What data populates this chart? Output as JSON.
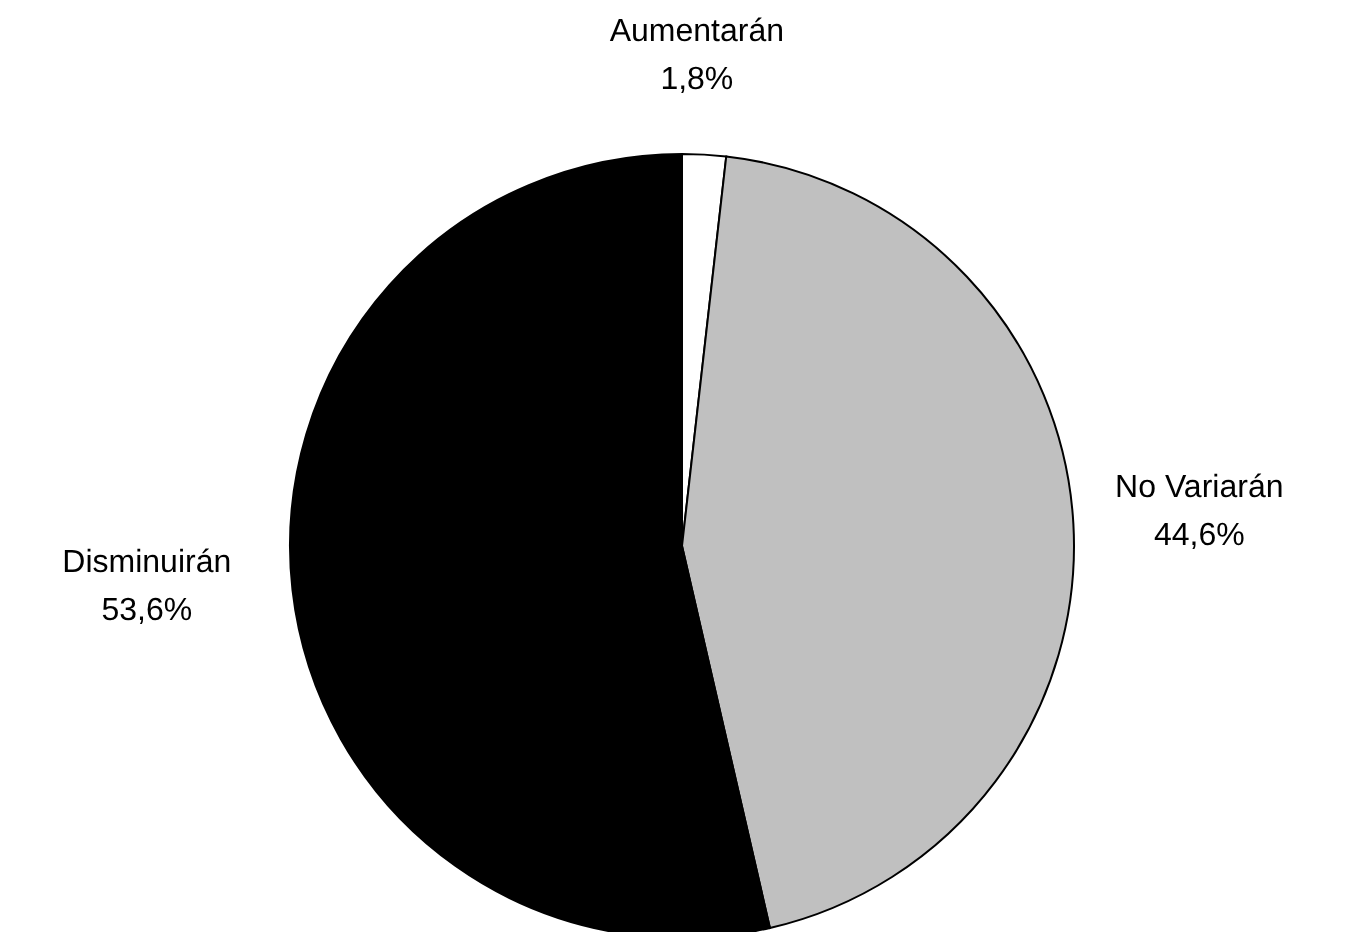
{
  "chart_data": {
    "type": "pie",
    "categories": [
      "Aumentarán",
      "No Variarán",
      "Disminuirán"
    ],
    "values": [
      1.8,
      44.6,
      53.6
    ],
    "value_labels": [
      "1,8%",
      "44,6%",
      "53,6%"
    ],
    "colors": [
      "#ffffff",
      "#c0c0c0",
      "#000000"
    ],
    "legend": false
  }
}
